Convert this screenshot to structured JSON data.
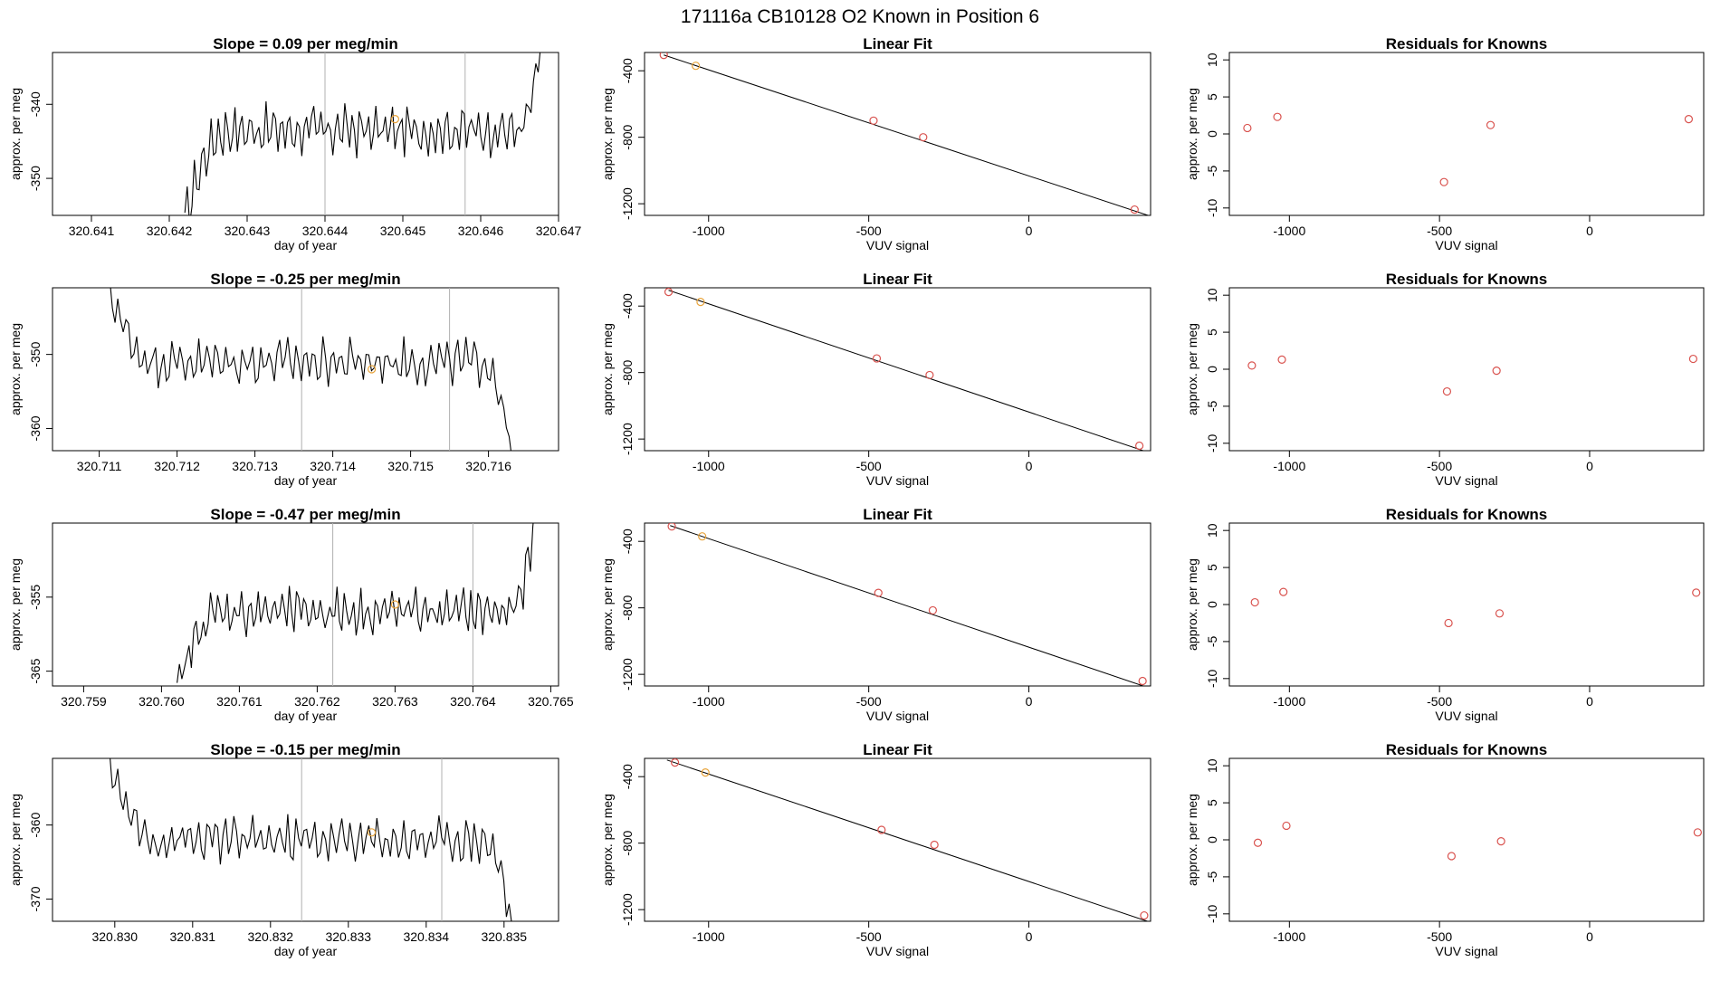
{
  "page_title": "171116a      CB10128    O2 Known in Position  6",
  "chart_data": [
    {
      "type": "multi-panel-row",
      "row": 1,
      "timeseries": {
        "title": "Slope =  0.09  per meg/min",
        "xlabel": "day of year",
        "ylabel": "approx. per meg",
        "xlim": [
          320.6405,
          320.647
        ],
        "ylim": [
          -355,
          -333
        ],
        "xticks": [
          "320.641",
          "320.642",
          "320.643",
          "320.644",
          "320.645",
          "320.646",
          "320.647"
        ],
        "yticks": [
          "-350",
          "-340"
        ],
        "vlines": [
          320.644,
          320.6458
        ],
        "marker": [
          320.6449,
          -342
        ],
        "x_start": 320.6422,
        "x_end": 320.6468,
        "start_dip": -356,
        "end_value": -330,
        "base": -343.5,
        "amp": 2.2
      },
      "linear_fit": {
        "title": "Linear Fit",
        "xlabel": "VUV signal",
        "ylabel": "approx. per meg",
        "xlim": [
          -1200,
          380
        ],
        "ylim": [
          -1270,
          -290
        ],
        "xticks": [
          "-1000",
          "-500",
          "0"
        ],
        "yticks": [
          "-400",
          "-800",
          "-1200"
        ],
        "line": [
          [
            -1140,
            -305
          ],
          [
            380,
            -1275
          ]
        ],
        "points": [
          {
            "x": -1140,
            "y": -305,
            "color": "#d9534f"
          },
          {
            "x": -1040,
            "y": -370,
            "color": "#e8a33a"
          },
          {
            "x": -485,
            "y": -700,
            "color": "#d9534f"
          },
          {
            "x": -330,
            "y": -800,
            "color": "#d9534f"
          },
          {
            "x": 330,
            "y": -1235,
            "color": "#d9534f"
          }
        ]
      },
      "residuals": {
        "title": "Residuals for Knowns",
        "xlabel": "VUV signal",
        "ylabel": "approx. per meg",
        "xlim": [
          -1200,
          380
        ],
        "ylim": [
          -11,
          11
        ],
        "xticks": [
          "-1000",
          "-500",
          "0"
        ],
        "yticks": [
          "10",
          "5",
          "0",
          "-5",
          "-10"
        ],
        "points": [
          {
            "x": -1140,
            "y": 0.8,
            "color": "#d9534f"
          },
          {
            "x": -1040,
            "y": 2.3,
            "color": "#d9534f"
          },
          {
            "x": -485,
            "y": -6.5,
            "color": "#d9534f"
          },
          {
            "x": -330,
            "y": 1.2,
            "color": "#d9534f"
          },
          {
            "x": 330,
            "y": 2.0,
            "color": "#d9534f"
          }
        ]
      }
    },
    {
      "type": "multi-panel-row",
      "row": 2,
      "timeseries": {
        "title": "Slope =  -0.25  per meg/min",
        "xlabel": "day of year",
        "ylabel": "approx. per meg",
        "xlim": [
          320.7104,
          320.7169
        ],
        "ylim": [
          -363,
          -341
        ],
        "xticks": [
          "320.711",
          "320.712",
          "320.713",
          "320.714",
          "320.715",
          "320.716"
        ],
        "yticks": [
          "-360",
          "-350"
        ],
        "vlines": [
          320.7136,
          320.7155
        ],
        "marker": [
          320.7145,
          -352
        ],
        "x_start": 320.7111,
        "x_end": 320.7163,
        "start_dip": -340,
        "end_value": -364,
        "base": -351,
        "amp": 2.0
      },
      "linear_fit": {
        "title": "Linear Fit",
        "xlabel": "VUV signal",
        "ylabel": "approx. per meg",
        "xlim": [
          -1200,
          380
        ],
        "ylim": [
          -1270,
          -290
        ],
        "xticks": [
          "-1000",
          "-500",
          "0"
        ],
        "yticks": [
          "-400",
          "-800",
          "-1200"
        ],
        "line": [
          [
            -1125,
            -305
          ],
          [
            380,
            -1285
          ]
        ],
        "points": [
          {
            "x": -1125,
            "y": -315,
            "color": "#d9534f"
          },
          {
            "x": -1025,
            "y": -375,
            "color": "#e8a33a"
          },
          {
            "x": -475,
            "y": -715,
            "color": "#d9534f"
          },
          {
            "x": -310,
            "y": -815,
            "color": "#d9534f"
          },
          {
            "x": 345,
            "y": -1240,
            "color": "#d9534f"
          }
        ]
      },
      "residuals": {
        "title": "Residuals for Knowns",
        "xlabel": "VUV signal",
        "ylabel": "approx. per meg",
        "xlim": [
          -1200,
          380
        ],
        "ylim": [
          -11,
          11
        ],
        "xticks": [
          "-1000",
          "-500",
          "0"
        ],
        "yticks": [
          "10",
          "5",
          "0",
          "-5",
          "-10"
        ],
        "points": [
          {
            "x": -1125,
            "y": 0.5,
            "color": "#d9534f"
          },
          {
            "x": -1025,
            "y": 1.3,
            "color": "#d9534f"
          },
          {
            "x": -475,
            "y": -3.0,
            "color": "#d9534f"
          },
          {
            "x": -310,
            "y": -0.2,
            "color": "#d9534f"
          },
          {
            "x": 345,
            "y": 1.4,
            "color": "#d9534f"
          }
        ]
      }
    },
    {
      "type": "multi-panel-row",
      "row": 3,
      "timeseries": {
        "title": "Slope =  -0.47  per meg/min",
        "xlabel": "day of year",
        "ylabel": "approx. per meg",
        "xlim": [
          320.7586,
          320.7651
        ],
        "ylim": [
          -367,
          -345
        ],
        "xticks": [
          "320.759",
          "320.760",
          "320.761",
          "320.762",
          "320.763",
          "320.764",
          "320.765"
        ],
        "yticks": [
          "-365",
          "-355"
        ],
        "vlines": [
          320.7622,
          320.764
        ],
        "marker": [
          320.763,
          -356
        ],
        "x_start": 320.7602,
        "x_end": 320.7648,
        "start_dip": -368,
        "end_value": -344,
        "base": -357,
        "amp": 2.0
      },
      "linear_fit": {
        "title": "Linear Fit",
        "xlabel": "VUV signal",
        "ylabel": "approx. per meg",
        "xlim": [
          -1200,
          380
        ],
        "ylim": [
          -1270,
          -290
        ],
        "xticks": [
          "-1000",
          "-500",
          "0"
        ],
        "yticks": [
          "-400",
          "-800",
          "-1200"
        ],
        "line": [
          [
            -1120,
            -305
          ],
          [
            380,
            -1285
          ]
        ],
        "points": [
          {
            "x": -1115,
            "y": -310,
            "color": "#d9534f"
          },
          {
            "x": -1020,
            "y": -370,
            "color": "#e8a33a"
          },
          {
            "x": -470,
            "y": -710,
            "color": "#d9534f"
          },
          {
            "x": -300,
            "y": -815,
            "color": "#d9534f"
          },
          {
            "x": 355,
            "y": -1240,
            "color": "#d9534f"
          }
        ]
      },
      "residuals": {
        "title": "Residuals for Knowns",
        "xlabel": "VUV signal",
        "ylabel": "approx. per meg",
        "xlim": [
          -1200,
          380
        ],
        "ylim": [
          -11,
          11
        ],
        "xticks": [
          "-1000",
          "-500",
          "0"
        ],
        "yticks": [
          "10",
          "5",
          "0",
          "-5",
          "-10"
        ],
        "points": [
          {
            "x": -1115,
            "y": 0.3,
            "color": "#d9534f"
          },
          {
            "x": -1020,
            "y": 1.7,
            "color": "#d9534f"
          },
          {
            "x": -470,
            "y": -2.5,
            "color": "#d9534f"
          },
          {
            "x": -300,
            "y": -1.2,
            "color": "#d9534f"
          },
          {
            "x": 355,
            "y": 1.6,
            "color": "#d9534f"
          }
        ]
      }
    },
    {
      "type": "multi-panel-row",
      "row": 4,
      "timeseries": {
        "title": "Slope =  -0.15  per meg/min",
        "xlabel": "day of year",
        "ylabel": "approx. per meg",
        "xlim": [
          320.8292,
          320.8357
        ],
        "ylim": [
          -373,
          -351
        ],
        "xticks": [
          "320.830",
          "320.831",
          "320.832",
          "320.833",
          "320.834",
          "320.835"
        ],
        "yticks": [
          "-370",
          "-360"
        ],
        "vlines": [
          320.8324,
          320.8342
        ],
        "marker": [
          320.8333,
          -361
        ],
        "x_start": 320.8299,
        "x_end": 320.8351,
        "start_dip": -350,
        "end_value": -374,
        "base": -362,
        "amp": 2.0
      },
      "linear_fit": {
        "title": "Linear Fit",
        "xlabel": "VUV signal",
        "ylabel": "approx. per meg",
        "xlim": [
          -1200,
          380
        ],
        "ylim": [
          -1270,
          -290
        ],
        "xticks": [
          "-1000",
          "-500",
          "0"
        ],
        "yticks": [
          "-400",
          "-800",
          "-1200"
        ],
        "line": [
          [
            -1130,
            -300
          ],
          [
            370,
            -1270
          ]
        ],
        "points": [
          {
            "x": -1105,
            "y": -315,
            "color": "#d9534f"
          },
          {
            "x": -1010,
            "y": -375,
            "color": "#e8a33a"
          },
          {
            "x": -460,
            "y": -720,
            "color": "#d9534f"
          },
          {
            "x": -295,
            "y": -810,
            "color": "#d9534f"
          },
          {
            "x": 360,
            "y": -1235,
            "color": "#d9534f"
          }
        ]
      },
      "residuals": {
        "title": "Residuals for Knowns",
        "xlabel": "VUV signal",
        "ylabel": "approx. per meg",
        "xlim": [
          -1200,
          380
        ],
        "ylim": [
          -11,
          11
        ],
        "xticks": [
          "-1000",
          "-500",
          "0"
        ],
        "yticks": [
          "10",
          "5",
          "0",
          "-5",
          "-10"
        ],
        "points": [
          {
            "x": -1105,
            "y": -0.4,
            "color": "#d9534f"
          },
          {
            "x": -1010,
            "y": 1.9,
            "color": "#d9534f"
          },
          {
            "x": -460,
            "y": -2.2,
            "color": "#d9534f"
          },
          {
            "x": -295,
            "y": -0.2,
            "color": "#d9534f"
          },
          {
            "x": 360,
            "y": 1.0,
            "color": "#d9534f"
          }
        ]
      }
    }
  ]
}
